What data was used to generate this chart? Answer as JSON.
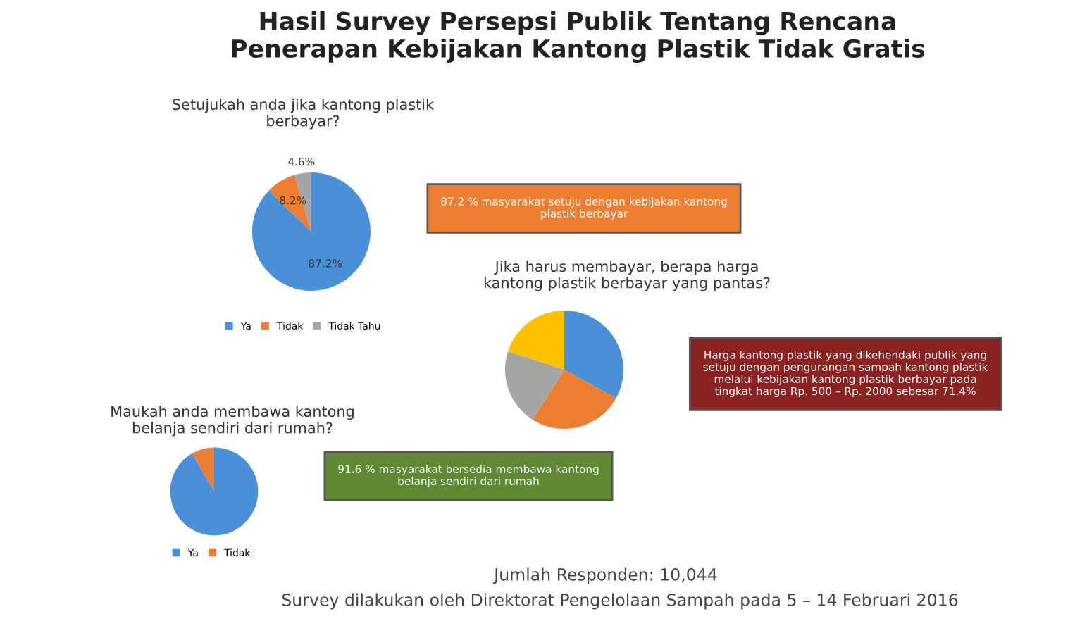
{
  "chart_data": [
    {
      "type": "other",
      "title": "Hasil Survey Persepsi Publik Tentang Rencana\nPenerapan Kebijakan Kantong Plastik Tidak Gratis",
      "annotations": [
        "Jumlah Responden: 10,044",
        "Survey dilakukan oleh Direktorat Pengelolaan Sampah pada 5 – 14 Februari 2016"
      ]
    },
    {
      "type": "pie",
      "title": "Setujukah anda jika kantong plastik\nberbayar?",
      "categories": [
        "Ya",
        "Tidak",
        "Tidak Tahu"
      ],
      "values": [
        87.2,
        8.2,
        4.6
      ],
      "colors": [
        "#4a90d9",
        "#ed7d31",
        "#a5a5a5"
      ],
      "value_labels": [
        "87.2%",
        "8.2%",
        "4.6%"
      ],
      "legend": "bottom",
      "annotations": [
        "87.2 % masyarakat setuju dengan kebijakan kantong\nplastik berbayar"
      ]
    },
    {
      "type": "pie",
      "title": "Jika harus membayar, berapa harga\nkantong plastik berbayar yang pantas?",
      "categories": [
        null,
        null,
        null,
        null
      ],
      "values": [
        33,
        26,
        21,
        20
      ],
      "colors": [
        "#4a90d9",
        "#ed7d31",
        "#a5a5a5",
        "#ffc000"
      ],
      "annotations": [
        "Harga kantong plastik yang dikehendaki publik yang\nsetuju dengan pengurangan sampah kantong plastik\nmelalui kebijakan kantong plastik berbayar pada\ntingkat harga Rp. 500 – Rp. 2000 sebesar 71.4%"
      ]
    },
    {
      "type": "pie",
      "title": "Maukah anda membawa kantong\nbelanja sendiri dari rumah?",
      "categories": [
        "Ya",
        "Tidak"
      ],
      "values": [
        91.6,
        8.4
      ],
      "colors": [
        "#4a90d9",
        "#ed7d31"
      ],
      "legend": "bottom",
      "annotations": [
        "91.6 % masyarakat bersedia membawa kantong\nbelanja sendiri dari rumah"
      ]
    }
  ]
}
